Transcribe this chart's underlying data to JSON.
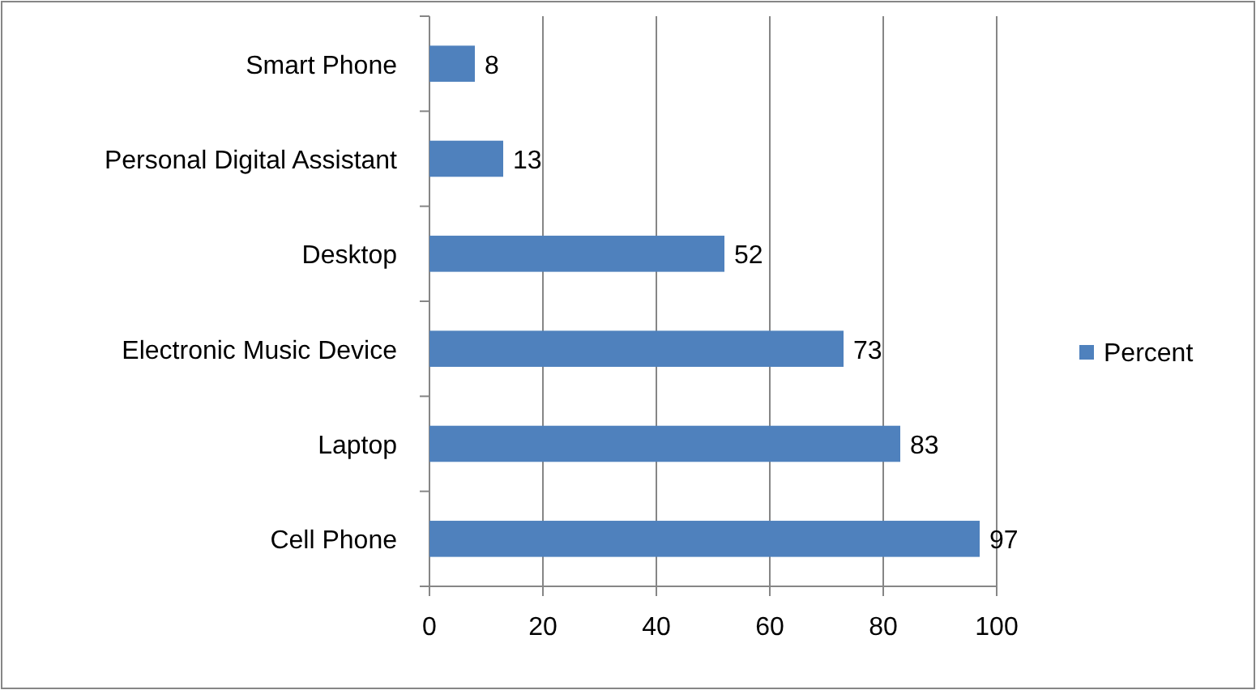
{
  "chart_data": {
    "type": "bar",
    "orientation": "horizontal",
    "categories": [
      "Smart Phone",
      "Personal Digital Assistant",
      "Desktop",
      "Electronic Music Device",
      "Laptop",
      "Cell Phone"
    ],
    "series": [
      {
        "name": "Percent",
        "color": "#4f81bd",
        "values": [
          8,
          13,
          52,
          73,
          83,
          97
        ]
      }
    ],
    "xlim": [
      0,
      100
    ],
    "xticks": [
      0,
      20,
      40,
      60,
      80,
      100
    ],
    "grid": "x",
    "legend": "right",
    "data_labels": true
  }
}
